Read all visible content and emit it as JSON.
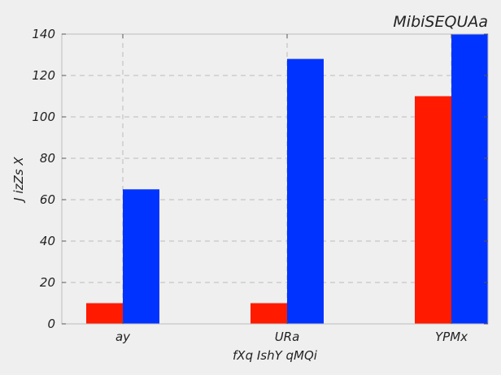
{
  "chart_data": {
    "type": "bar",
    "title": "MibiSEQUAa",
    "xlabel": "fXq IshY qMQi",
    "ylabel": "J izZs X",
    "categories": [
      "ay",
      "URa",
      "YPMx"
    ],
    "series": [
      {
        "values": [
          10,
          10,
          110
        ],
        "color": "#ff1a00"
      },
      {
        "values": [
          65,
          128,
          140
        ],
        "color": "#0033ff"
      }
    ],
    "ylim": [
      0,
      140
    ],
    "yticks": [
      "0",
      "20",
      "40",
      "60",
      "80",
      "100",
      "120",
      "140"
    ],
    "grid": true,
    "background": "#efefef",
    "grid_color": "#bbbbbb"
  }
}
